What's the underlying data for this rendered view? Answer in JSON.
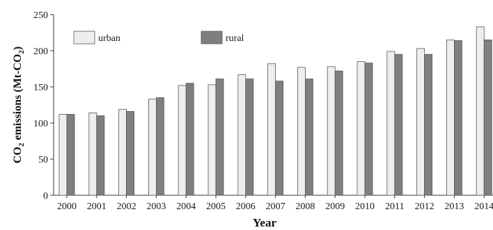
{
  "chart_data": {
    "type": "bar",
    "categories": [
      "2000",
      "2001",
      "2002",
      "2003",
      "2004",
      "2005",
      "2006",
      "2007",
      "2008",
      "2009",
      "2010",
      "2011",
      "2012",
      "2013",
      "2014"
    ],
    "series": [
      {
        "name": "urban",
        "values": [
          112,
          114,
          119,
          133,
          152,
          153,
          167,
          182,
          177,
          178,
          185,
          199,
          203,
          215,
          233
        ],
        "color": "#eeeeee"
      },
      {
        "name": "rural",
        "values": [
          112,
          110,
          116,
          135,
          155,
          161,
          161,
          158,
          161,
          172,
          183,
          195,
          195,
          214,
          215
        ],
        "color": "#7f7f7f"
      }
    ],
    "xlabel": "Year",
    "ylabel": {
      "prefix": "CO",
      "sub": "2",
      "middle": " emissions (Mt-CO",
      "sub2": "2",
      "suffix": ")"
    },
    "ylim": [
      0,
      250
    ],
    "yticks": [
      0,
      50,
      100,
      150,
      200,
      250
    ],
    "grid": false,
    "legend_position": "top-left"
  }
}
